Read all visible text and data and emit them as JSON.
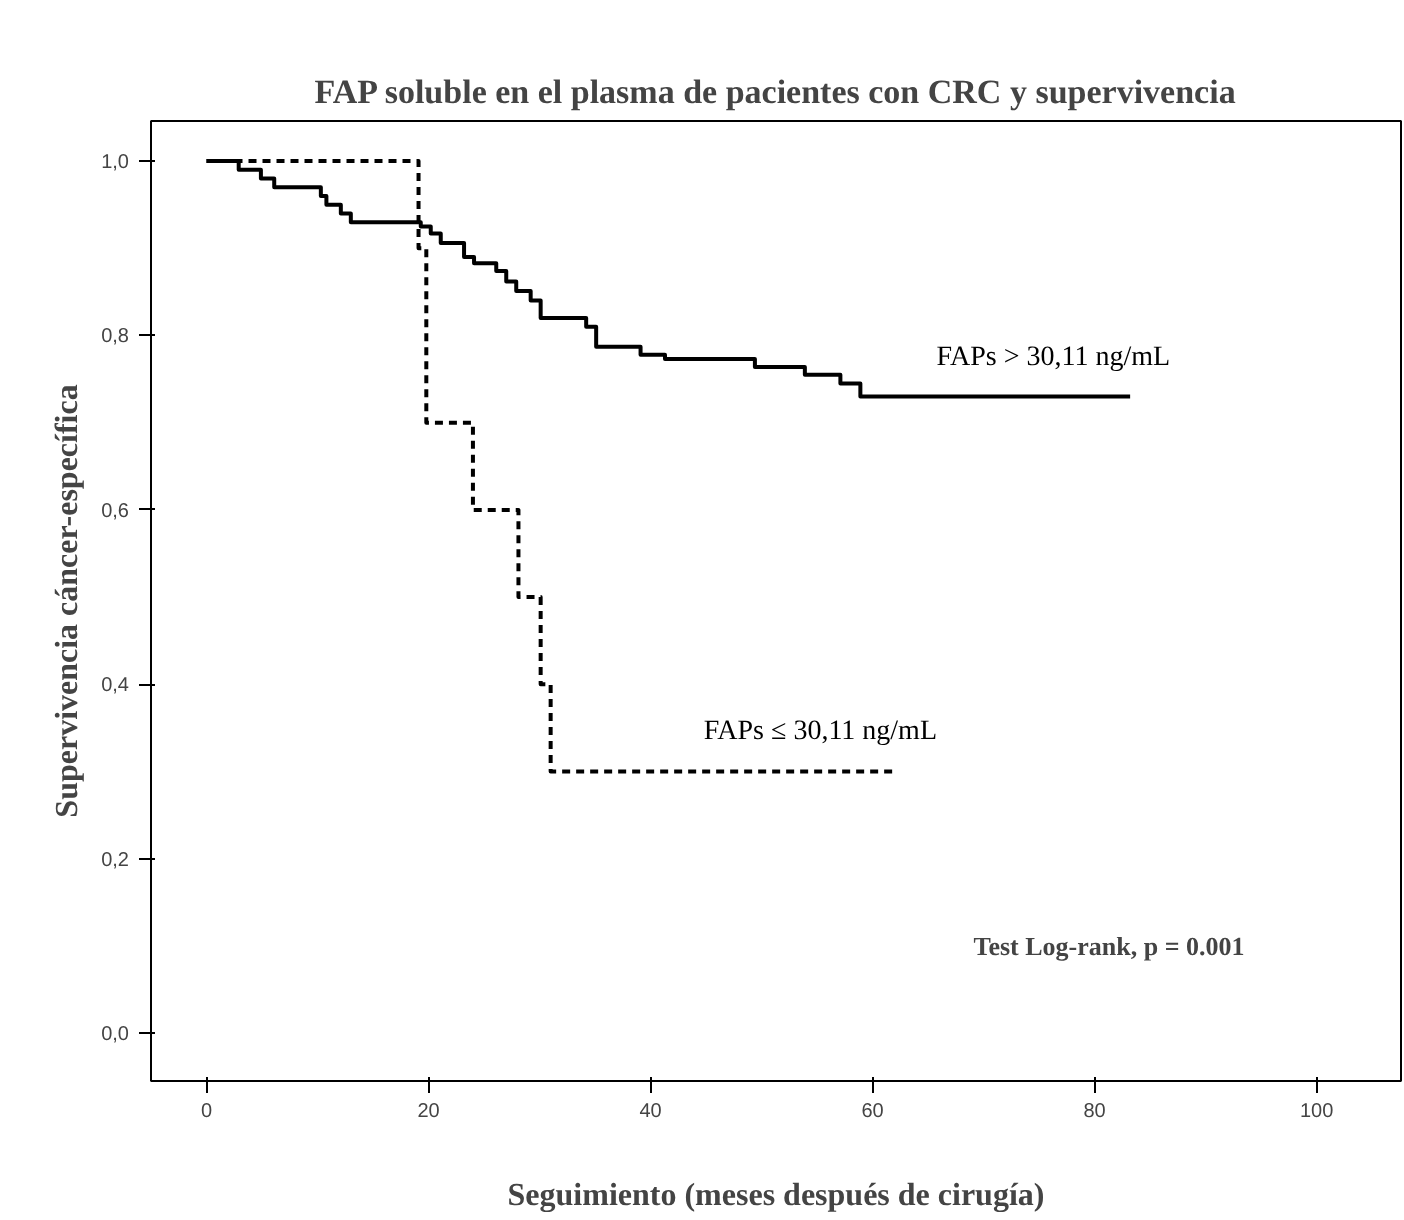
{
  "chart_data": {
    "type": "step",
    "title": "FAP soluble en el plasma de pacientes con CRC y supervivencia",
    "xlabel": "Seguimiento (meses después de cirugía)",
    "ylabel": "Supervivencia cáncer-específica",
    "series": [
      {
        "name": "FAPs > 30,11 ng/mL",
        "color": "#000000",
        "line_style": "solid",
        "x": [
          0,
          2.9,
          4.9,
          6.1,
          10.3,
          10.8,
          12.1,
          13,
          19.3,
          20.2,
          21.1,
          23.2,
          24.1,
          26.1,
          27,
          27.9,
          29.2,
          30.1,
          34.2,
          35.1,
          39.1,
          41.3,
          49.4,
          53.9,
          57.1,
          58.9,
          83.2
        ],
        "values": [
          1,
          0.99,
          0.98,
          0.97,
          0.96,
          0.95,
          0.94,
          0.93,
          0.925,
          0.917,
          0.906,
          0.89,
          0.883,
          0.874,
          0.862,
          0.851,
          0.84,
          0.82,
          0.81,
          0.787,
          0.778,
          0.773,
          0.764,
          0.755,
          0.745,
          0.73,
          0.73
        ]
      },
      {
        "name": "FAPs ≤ 30,11 ng/mL",
        "color": "#000000",
        "line_style": "dashed",
        "x": [
          0,
          19.1,
          19.8,
          24,
          28.1,
          30.1,
          31,
          62.2
        ],
        "values": [
          1,
          0.9,
          0.7,
          0.6,
          0.5,
          0.4,
          0.3,
          0.3
        ]
      }
    ],
    "xlim": [
      -5,
      107.6
    ],
    "ylim": [
      -0.055,
      1.046
    ],
    "xticks": [
      0,
      20,
      40,
      60,
      80,
      100
    ],
    "yticks": [
      {
        "value": 0,
        "label": "0,0"
      },
      {
        "value": 0.2,
        "label": "0,2"
      },
      {
        "value": 0.4,
        "label": "0,4"
      },
      {
        "value": 0.6,
        "label": "0,6"
      },
      {
        "value": 0.8,
        "label": "0,8"
      },
      {
        "value": 1,
        "label": "1,0"
      }
    ],
    "annotations": [
      "Test Log-rank,  p = 0.001"
    ],
    "grid": false,
    "legend": false,
    "marker": "none"
  }
}
